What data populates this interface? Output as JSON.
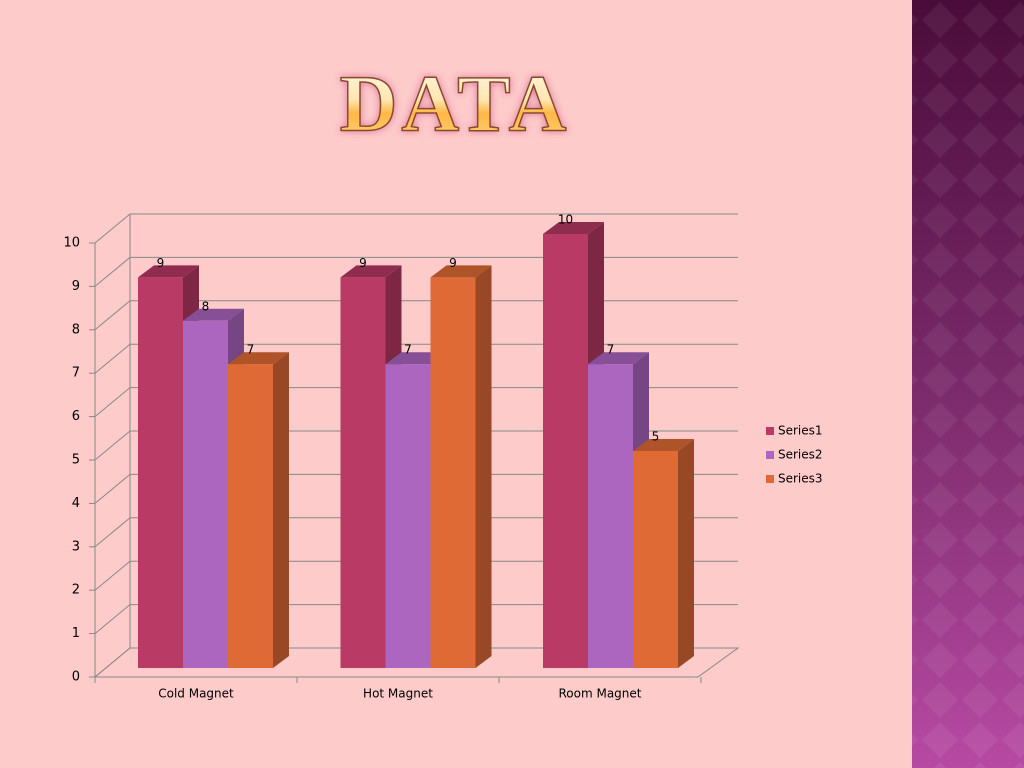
{
  "chart_data": {
    "type": "bar",
    "title": "DATA",
    "categories": [
      "Cold Magnet",
      "Hot Magnet",
      "Room Magnet"
    ],
    "series": [
      {
        "name": "Series1",
        "color": "#b83a65",
        "values": [
          9,
          9,
          10
        ]
      },
      {
        "name": "Series2",
        "color": "#ad66c0",
        "values": [
          8,
          7,
          7
        ]
      },
      {
        "name": "Series3",
        "color": "#e06a35",
        "values": [
          7,
          9,
          5
        ]
      }
    ],
    "ylim": [
      0,
      10
    ],
    "yticks": [
      0,
      1,
      2,
      3,
      4,
      5,
      6,
      7,
      8,
      9,
      10
    ],
    "grid": true,
    "legend": "right",
    "data_labels": true
  }
}
